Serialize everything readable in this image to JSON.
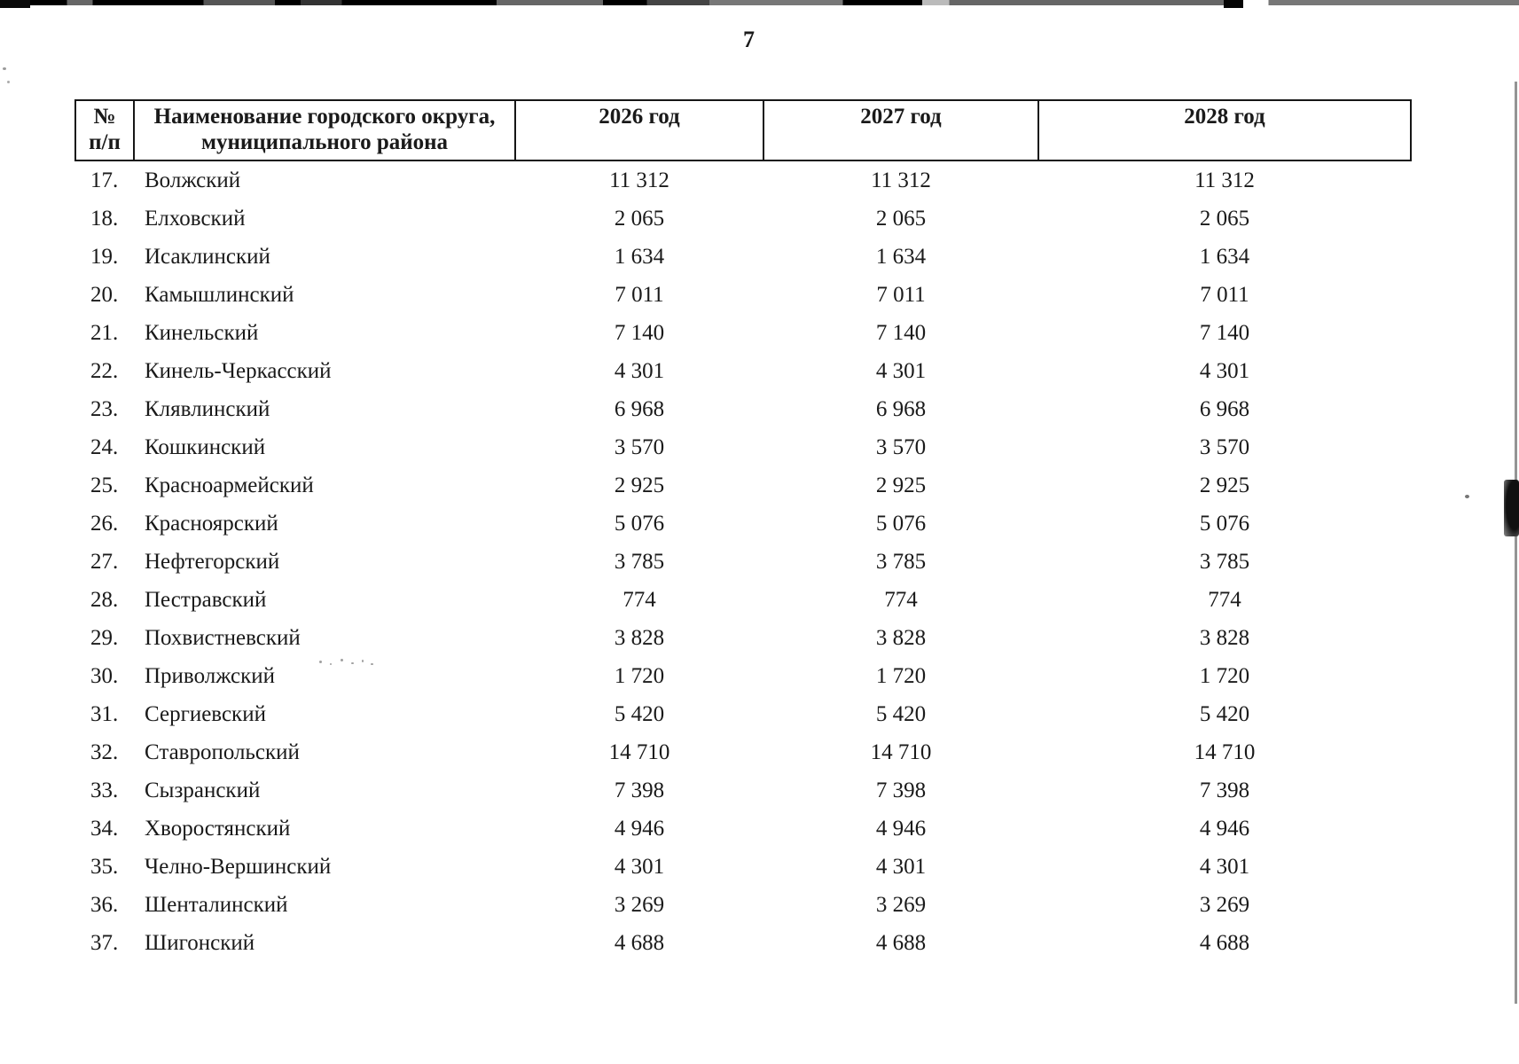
{
  "page": {
    "number": "7"
  },
  "table": {
    "header": {
      "num_line1": "№",
      "num_line2": "п/п",
      "name_line1": "Наименование городского округа,",
      "name_line2": "муниципального района",
      "y2026": "2026 год",
      "y2027": "2027 год",
      "y2028": "2028 год"
    },
    "rows": [
      {
        "n": "17.",
        "name": "Волжский",
        "y2026": "11 312",
        "y2027": "11 312",
        "y2028": "11 312"
      },
      {
        "n": "18.",
        "name": "Елховский",
        "y2026": "2 065",
        "y2027": "2 065",
        "y2028": "2 065"
      },
      {
        "n": "19.",
        "name": "Исаклинский",
        "y2026": "1 634",
        "y2027": "1 634",
        "y2028": "1 634"
      },
      {
        "n": "20.",
        "name": "Камышлинский",
        "y2026": "7 011",
        "y2027": "7 011",
        "y2028": "7 011"
      },
      {
        "n": "21.",
        "name": "Кинельский",
        "y2026": "7 140",
        "y2027": "7 140",
        "y2028": "7 140"
      },
      {
        "n": "22.",
        "name": "Кинель-Черкасский",
        "y2026": "4 301",
        "y2027": "4 301",
        "y2028": "4 301"
      },
      {
        "n": "23.",
        "name": "Клявлинский",
        "y2026": "6 968",
        "y2027": "6 968",
        "y2028": "6 968"
      },
      {
        "n": "24.",
        "name": "Кошкинский",
        "y2026": "3 570",
        "y2027": "3 570",
        "y2028": "3 570"
      },
      {
        "n": "25.",
        "name": "Красноармейский",
        "y2026": "2 925",
        "y2027": "2 925",
        "y2028": "2 925"
      },
      {
        "n": "26.",
        "name": "Красноярский",
        "y2026": "5 076",
        "y2027": "5 076",
        "y2028": "5 076"
      },
      {
        "n": "27.",
        "name": "Нефтегорский",
        "y2026": "3 785",
        "y2027": "3 785",
        "y2028": "3 785"
      },
      {
        "n": "28.",
        "name": "Пестравский",
        "y2026": "774",
        "y2027": "774",
        "y2028": "774"
      },
      {
        "n": "29.",
        "name": "Похвистневский",
        "y2026": "3 828",
        "y2027": "3 828",
        "y2028": "3 828"
      },
      {
        "n": "30.",
        "name": "Приволжский",
        "y2026": "1 720",
        "y2027": "1 720",
        "y2028": "1 720"
      },
      {
        "n": "31.",
        "name": "Сергиевский",
        "y2026": "5 420",
        "y2027": "5 420",
        "y2028": "5 420"
      },
      {
        "n": "32.",
        "name": "Ставропольский",
        "y2026": "14 710",
        "y2027": "14 710",
        "y2028": "14 710"
      },
      {
        "n": "33.",
        "name": "Сызранский",
        "y2026": "7 398",
        "y2027": "7 398",
        "y2028": "7 398"
      },
      {
        "n": "34.",
        "name": "Хворостянский",
        "y2026": "4 946",
        "y2027": "4 946",
        "y2028": "4 946"
      },
      {
        "n": "35.",
        "name": "Челно-Вершинский",
        "y2026": "4 301",
        "y2027": "4 301",
        "y2028": "4 301"
      },
      {
        "n": "36.",
        "name": "Шенталинский",
        "y2026": "3 269",
        "y2027": "3 269",
        "y2028": "3 269"
      },
      {
        "n": "37.",
        "name": "Шигонский",
        "y2026": "4 688",
        "y2027": "4 688",
        "y2028": "4 688"
      }
    ]
  }
}
